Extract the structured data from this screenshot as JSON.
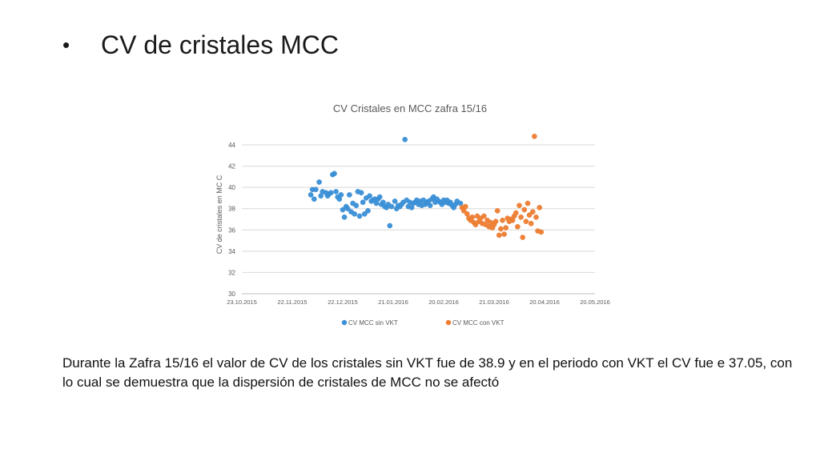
{
  "slide": {
    "bullet": "•",
    "title": "CV de cristales MCC",
    "body": "Durante la Zafra 15/16 el valor de CV de los cristales sin VKT fue de 38.9 y en el periodo con VKT el CV fue e 37.05, con lo cual se demuestra que la dispersión de cristales de MCC no se afectó"
  },
  "chart_data": {
    "type": "scatter",
    "title": "CV Cristales en MCC zafra 15/16",
    "xlabel": "",
    "ylabel": "CV de cristales en MC C",
    "x_ticks": [
      "23.10.2015",
      "22.11.2015",
      "22.12.2015",
      "21.01.2016",
      "20.02.2016",
      "21.03.2016",
      "20.04.2016",
      "20.05.2016"
    ],
    "xlim": [
      "2015-10-23",
      "2016-05-20"
    ],
    "ylim": [
      30,
      44
    ],
    "y_ticks": [
      30,
      32,
      34,
      36,
      38,
      40,
      42,
      44
    ],
    "grid": true,
    "legend": "bottom",
    "series": [
      {
        "name": "CV MCC sin VKT",
        "color": "#3a8fd6",
        "points": [
          [
            "2015-12-03",
            39.3
          ],
          [
            "2015-12-04",
            39.8
          ],
          [
            "2015-12-05",
            38.9
          ],
          [
            "2015-12-06",
            39.8
          ],
          [
            "2015-12-08",
            40.5
          ],
          [
            "2015-12-09",
            39.2
          ],
          [
            "2015-12-10",
            39.6
          ],
          [
            "2015-12-12",
            39.5
          ],
          [
            "2015-12-13",
            39.2
          ],
          [
            "2015-12-14",
            39.4
          ],
          [
            "2015-12-15",
            39.5
          ],
          [
            "2015-12-16",
            41.2
          ],
          [
            "2015-12-17",
            41.3
          ],
          [
            "2015-12-18",
            39.6
          ],
          [
            "2015-12-19",
            39.1
          ],
          [
            "2015-12-20",
            38.9
          ],
          [
            "2015-12-21",
            39.3
          ],
          [
            "2015-12-22",
            37.9
          ],
          [
            "2015-12-23",
            37.2
          ],
          [
            "2015-12-24",
            38.2
          ],
          [
            "2015-12-25",
            38.0
          ],
          [
            "2015-12-26",
            39.3
          ],
          [
            "2015-12-27",
            37.7
          ],
          [
            "2015-12-28",
            38.5
          ],
          [
            "2015-12-29",
            37.5
          ],
          [
            "2015-12-30",
            38.3
          ],
          [
            "2015-12-31",
            39.6
          ],
          [
            "2016-01-01",
            37.3
          ],
          [
            "2016-01-02",
            39.5
          ],
          [
            "2016-01-03",
            38.6
          ],
          [
            "2016-01-04",
            37.5
          ],
          [
            "2016-01-05",
            39.0
          ],
          [
            "2016-01-06",
            37.8
          ],
          [
            "2016-01-07",
            39.2
          ],
          [
            "2016-01-08",
            38.7
          ],
          [
            "2016-01-09",
            38.8
          ],
          [
            "2016-01-10",
            38.9
          ],
          [
            "2016-01-11",
            38.5
          ],
          [
            "2016-01-12",
            38.9
          ],
          [
            "2016-01-13",
            39.1
          ],
          [
            "2016-01-14",
            38.4
          ],
          [
            "2016-01-15",
            38.6
          ],
          [
            "2016-01-16",
            38.2
          ],
          [
            "2016-01-17",
            38.1
          ],
          [
            "2016-01-18",
            38.4
          ],
          [
            "2016-01-19",
            36.4
          ],
          [
            "2016-01-20",
            38.2
          ],
          [
            "2016-01-22",
            38.7
          ],
          [
            "2016-01-23",
            38.0
          ],
          [
            "2016-01-24",
            38.3
          ],
          [
            "2016-01-25",
            38.2
          ],
          [
            "2016-01-26",
            38.4
          ],
          [
            "2016-01-27",
            38.6
          ],
          [
            "2016-01-28",
            44.5
          ],
          [
            "2016-01-29",
            38.8
          ],
          [
            "2016-01-30",
            38.2
          ],
          [
            "2016-01-31",
            38.6
          ],
          [
            "2016-02-01",
            38.1
          ],
          [
            "2016-02-02",
            38.5
          ],
          [
            "2016-02-03",
            38.6
          ],
          [
            "2016-02-04",
            38.8
          ],
          [
            "2016-02-05",
            38.4
          ],
          [
            "2016-02-06",
            38.7
          ],
          [
            "2016-02-07",
            38.3
          ],
          [
            "2016-02-08",
            38.8
          ],
          [
            "2016-02-09",
            38.4
          ],
          [
            "2016-02-10",
            38.6
          ],
          [
            "2016-02-11",
            38.7
          ],
          [
            "2016-02-12",
            38.3
          ],
          [
            "2016-02-13",
            38.9
          ],
          [
            "2016-02-14",
            39.1
          ],
          [
            "2016-02-15",
            38.6
          ],
          [
            "2016-02-16",
            38.9
          ],
          [
            "2016-02-17",
            38.7
          ],
          [
            "2016-02-18",
            38.6
          ],
          [
            "2016-02-19",
            38.4
          ],
          [
            "2016-02-20",
            38.8
          ],
          [
            "2016-02-21",
            38.6
          ],
          [
            "2016-02-22",
            38.8
          ],
          [
            "2016-02-23",
            38.5
          ],
          [
            "2016-02-24",
            38.6
          ],
          [
            "2016-02-25",
            38.3
          ],
          [
            "2016-02-26",
            38.1
          ],
          [
            "2016-02-27",
            38.4
          ],
          [
            "2016-02-28",
            38.7
          ],
          [
            "2016-03-01",
            38.5
          ]
        ]
      },
      {
        "name": "CV MCC con VKT",
        "color": "#ed7d31",
        "points": [
          [
            "2016-03-02",
            38.1
          ],
          [
            "2016-03-03",
            37.8
          ],
          [
            "2016-03-04",
            38.2
          ],
          [
            "2016-03-05",
            37.5
          ],
          [
            "2016-03-06",
            37.1
          ],
          [
            "2016-03-07",
            36.9
          ],
          [
            "2016-03-08",
            37.2
          ],
          [
            "2016-03-09",
            36.7
          ],
          [
            "2016-03-10",
            36.5
          ],
          [
            "2016-03-11",
            37.3
          ],
          [
            "2016-03-12",
            36.8
          ],
          [
            "2016-03-13",
            37.1
          ],
          [
            "2016-03-14",
            36.6
          ],
          [
            "2016-03-15",
            37.3
          ],
          [
            "2016-03-16",
            36.5
          ],
          [
            "2016-03-17",
            36.9
          ],
          [
            "2016-03-18",
            36.3
          ],
          [
            "2016-03-19",
            36.7
          ],
          [
            "2016-03-20",
            36.2
          ],
          [
            "2016-03-21",
            36.5
          ],
          [
            "2016-03-22",
            36.8
          ],
          [
            "2016-03-23",
            37.8
          ],
          [
            "2016-03-24",
            35.5
          ],
          [
            "2016-03-25",
            36.1
          ],
          [
            "2016-03-26",
            36.9
          ],
          [
            "2016-03-27",
            35.6
          ],
          [
            "2016-03-28",
            36.2
          ],
          [
            "2016-03-29",
            37.1
          ],
          [
            "2016-03-30",
            36.8
          ],
          [
            "2016-03-31",
            37.0
          ],
          [
            "2016-04-01",
            36.9
          ],
          [
            "2016-04-02",
            37.3
          ],
          [
            "2016-04-03",
            37.6
          ],
          [
            "2016-04-04",
            36.3
          ],
          [
            "2016-04-05",
            38.3
          ],
          [
            "2016-04-06",
            37.2
          ],
          [
            "2016-04-07",
            35.3
          ],
          [
            "2016-04-08",
            37.9
          ],
          [
            "2016-04-09",
            36.8
          ],
          [
            "2016-04-10",
            38.5
          ],
          [
            "2016-04-11",
            37.4
          ],
          [
            "2016-04-12",
            36.6
          ],
          [
            "2016-04-13",
            37.7
          ],
          [
            "2016-04-14",
            44.8
          ],
          [
            "2016-04-15",
            37.2
          ],
          [
            "2016-04-16",
            35.9
          ],
          [
            "2016-04-17",
            38.1
          ],
          [
            "2016-04-18",
            35.8
          ]
        ]
      }
    ]
  }
}
